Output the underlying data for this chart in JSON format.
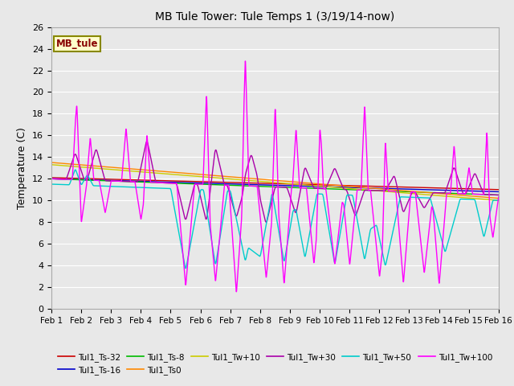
{
  "title": "MB Tule Tower: Tule Temps 1 (3/19/14-now)",
  "ylabel": "Temperature (C)",
  "ylim": [
    0,
    26
  ],
  "xlim": [
    0,
    15
  ],
  "xtick_labels": [
    "Feb 1",
    "Feb 2",
    "Feb 3",
    "Feb 4",
    "Feb 5",
    "Feb 6",
    "Feb 7",
    "Feb 8",
    "Feb 9",
    "Feb 10",
    "Feb 11",
    "Feb 12",
    "Feb 13",
    "Feb 14",
    "Feb 15",
    "Feb 16"
  ],
  "ytick_vals": [
    0,
    2,
    4,
    6,
    8,
    10,
    12,
    14,
    16,
    18,
    20,
    22,
    24,
    26
  ],
  "bg_color": "#e8e8e8",
  "grid_color": "#ffffff",
  "series_colors": {
    "Tul1_Ts-32": "#cc0000",
    "Tul1_Ts-16": "#0000cc",
    "Tul1_Ts-8": "#00bb00",
    "Tul1_Ts0": "#ff8800",
    "Tul1_Tw+10": "#cccc00",
    "Tul1_Tw+30": "#aa00aa",
    "Tul1_Tw+50": "#00cccc",
    "Tul1_Tw+100": "#ff00ff"
  },
  "legend_label": "MB_tule",
  "legend_label_color": "#880000",
  "legend_bg": "#ffffcc",
  "legend_border": "#888800"
}
